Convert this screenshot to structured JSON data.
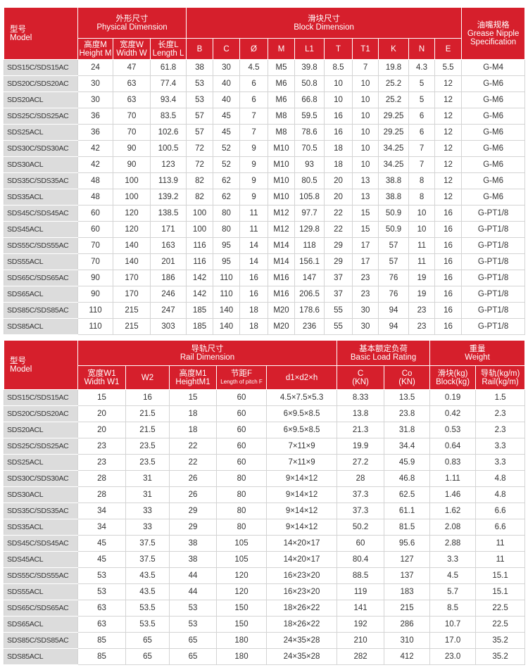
{
  "tables": [
    {
      "header": [
        [
          [
            "型号",
            "Model"
          ],
          [
            "外形尺寸",
            "Physical Dimension"
          ],
          [
            "滑块尺寸",
            "Block Dimension"
          ],
          [
            "油嘴规格",
            "Grease Nipple",
            "Specification"
          ]
        ],
        [
          [
            "高度M",
            "Height M"
          ],
          [
            "宽度W",
            "Width W"
          ],
          [
            "长度L",
            "Length L"
          ],
          [
            "B"
          ],
          [
            "C"
          ],
          [
            "Ø"
          ],
          [
            "M"
          ],
          [
            "L1"
          ],
          [
            "T"
          ],
          [
            "T1"
          ],
          [
            "K"
          ],
          [
            "N"
          ],
          [
            "E"
          ]
        ]
      ],
      "rows": [
        [
          "SDS15C/SDS15AC",
          "24",
          "47",
          "61.8",
          "38",
          "30",
          "4.5",
          "M5",
          "39.8",
          "8.5",
          "7",
          "19.8",
          "4.3",
          "5.5",
          "G-M4"
        ],
        [
          "SDS20C/SDS20AC",
          "30",
          "63",
          "77.4",
          "53",
          "40",
          "6",
          "M6",
          "50.8",
          "10",
          "10",
          "25.2",
          "5",
          "12",
          "G-M6"
        ],
        [
          "SDS20ACL",
          "30",
          "63",
          "93.4",
          "53",
          "40",
          "6",
          "M6",
          "66.8",
          "10",
          "10",
          "25.2",
          "5",
          "12",
          "G-M6"
        ],
        [
          "SDS25C/SDS25AC",
          "36",
          "70",
          "83.5",
          "57",
          "45",
          "7",
          "M8",
          "59.5",
          "16",
          "10",
          "29.25",
          "6",
          "12",
          "G-M6"
        ],
        [
          "SDS25ACL",
          "36",
          "70",
          "102.6",
          "57",
          "45",
          "7",
          "M8",
          "78.6",
          "16",
          "10",
          "29.25",
          "6",
          "12",
          "G-M6"
        ],
        [
          "SDS30C/SDS30AC",
          "42",
          "90",
          "100.5",
          "72",
          "52",
          "9",
          "M10",
          "70.5",
          "18",
          "10",
          "34.25",
          "7",
          "12",
          "G-M6"
        ],
        [
          "SDS30ACL",
          "42",
          "90",
          "123",
          "72",
          "52",
          "9",
          "M10",
          "93",
          "18",
          "10",
          "34.25",
          "7",
          "12",
          "G-M6"
        ],
        [
          "SDS35C/SDS35AC",
          "48",
          "100",
          "113.9",
          "82",
          "62",
          "9",
          "M10",
          "80.5",
          "20",
          "13",
          "38.8",
          "8",
          "12",
          "G-M6"
        ],
        [
          "SDS35ACL",
          "48",
          "100",
          "139.2",
          "82",
          "62",
          "9",
          "M10",
          "105.8",
          "20",
          "13",
          "38.8",
          "8",
          "12",
          "G-M6"
        ],
        [
          "SDS45C/SDS45AC",
          "60",
          "120",
          "138.5",
          "100",
          "80",
          "11",
          "M12",
          "97.7",
          "22",
          "15",
          "50.9",
          "10",
          "16",
          "G-PT1/8"
        ],
        [
          "SDS45ACL",
          "60",
          "120",
          "171",
          "100",
          "80",
          "11",
          "M12",
          "129.8",
          "22",
          "15",
          "50.9",
          "10",
          "16",
          "G-PT1/8"
        ],
        [
          "SDS55C/SDS55AC",
          "70",
          "140",
          "163",
          "116",
          "95",
          "14",
          "M14",
          "118",
          "29",
          "17",
          "57",
          "11",
          "16",
          "G-PT1/8"
        ],
        [
          "SDS55ACL",
          "70",
          "140",
          "201",
          "116",
          "95",
          "14",
          "M14",
          "156.1",
          "29",
          "17",
          "57",
          "11",
          "16",
          "G-PT1/8"
        ],
        [
          "SDS65C/SDS65AC",
          "90",
          "170",
          "186",
          "142",
          "110",
          "16",
          "M16",
          "147",
          "37",
          "23",
          "76",
          "19",
          "16",
          "G-PT1/8"
        ],
        [
          "SDS65ACL",
          "90",
          "170",
          "246",
          "142",
          "110",
          "16",
          "M16",
          "206.5",
          "37",
          "23",
          "76",
          "19",
          "16",
          "G-PT1/8"
        ],
        [
          "SDS85C/SDS85AC",
          "110",
          "215",
          "247",
          "185",
          "140",
          "18",
          "M20",
          "178.6",
          "55",
          "30",
          "94",
          "23",
          "16",
          "G-PT1/8"
        ],
        [
          "SDS85ACL",
          "110",
          "215",
          "303",
          "185",
          "140",
          "18",
          "M20",
          "236",
          "55",
          "30",
          "94",
          "23",
          "16",
          "G-PT1/8"
        ]
      ]
    },
    {
      "header": [
        [
          [
            "型号",
            "Model"
          ],
          [
            "导轨尺寸",
            "Rail Dimension"
          ],
          [
            "基本额定负荷",
            "Basic Load Rating"
          ],
          [
            "重量",
            "Weight"
          ]
        ],
        [
          [
            "宽度W1",
            "Width W1"
          ],
          [
            "W2"
          ],
          [
            "高度M1",
            "HeightM1"
          ],
          [
            "节距F",
            "Length of pitch F"
          ],
          [
            "d1×d2×h"
          ],
          [
            "C",
            "(KN)"
          ],
          [
            "Co",
            "(KN)"
          ],
          [
            "滑块(kg)",
            "Block(kg)"
          ],
          [
            "导轨(kg/m)",
            "Rail(kg/m)"
          ]
        ]
      ],
      "rows": [
        [
          "SDS15C/SDS15AC",
          "15",
          "16",
          "15",
          "60",
          "4.5×7.5×5.3",
          "8.33",
          "13.5",
          "0.19",
          "1.5"
        ],
        [
          "SDS20C/SDS20AC",
          "20",
          "21.5",
          "18",
          "60",
          "6×9.5×8.5",
          "13.8",
          "23.8",
          "0.42",
          "2.3"
        ],
        [
          "SDS20ACL",
          "20",
          "21.5",
          "18",
          "60",
          "6×9.5×8.5",
          "21.3",
          "31.8",
          "0.53",
          "2.3"
        ],
        [
          "SDS25C/SDS25AC",
          "23",
          "23.5",
          "22",
          "60",
          "7×11×9",
          "19.9",
          "34.4",
          "0.64",
          "3.3"
        ],
        [
          "SDS25ACL",
          "23",
          "23.5",
          "22",
          "60",
          "7×11×9",
          "27.2",
          "45.9",
          "0.83",
          "3.3"
        ],
        [
          "SDS30C/SDS30AC",
          "28",
          "31",
          "26",
          "80",
          "9×14×12",
          "28",
          "46.8",
          "1.11",
          "4.8"
        ],
        [
          "SDS30ACL",
          "28",
          "31",
          "26",
          "80",
          "9×14×12",
          "37.3",
          "62.5",
          "1.46",
          "4.8"
        ],
        [
          "SDS35C/SDS35AC",
          "34",
          "33",
          "29",
          "80",
          "9×14×12",
          "37.3",
          "61.1",
          "1.62",
          "6.6"
        ],
        [
          "SDS35ACL",
          "34",
          "33",
          "29",
          "80",
          "9×14×12",
          "50.2",
          "81.5",
          "2.08",
          "6.6"
        ],
        [
          "SDS45C/SDS45AC",
          "45",
          "37.5",
          "38",
          "105",
          "14×20×17",
          "60",
          "95.6",
          "2.88",
          "11"
        ],
        [
          "SDS45ACL",
          "45",
          "37.5",
          "38",
          "105",
          "14×20×17",
          "80.4",
          "127",
          "3.3",
          "11"
        ],
        [
          "SDS55C/SDS55AC",
          "53",
          "43.5",
          "44",
          "120",
          "16×23×20",
          "88.5",
          "137",
          "4.5",
          "15.1"
        ],
        [
          "SDS55ACL",
          "53",
          "43.5",
          "44",
          "120",
          "16×23×20",
          "119",
          "183",
          "5.7",
          "15.1"
        ],
        [
          "SDS65C/SDS65AC",
          "63",
          "53.5",
          "53",
          "150",
          "18×26×22",
          "141",
          "215",
          "8.5",
          "22.5"
        ],
        [
          "SDS65ACL",
          "63",
          "53.5",
          "53",
          "150",
          "18×26×22",
          "192",
          "286",
          "10.7",
          "22.5"
        ],
        [
          "SDS85C/SDS85AC",
          "85",
          "65",
          "65",
          "180",
          "24×35×28",
          "210",
          "310",
          "17.0",
          "35.2"
        ],
        [
          "SDS85ACL",
          "85",
          "65",
          "65",
          "180",
          "24×35×28",
          "282",
          "412",
          "23.0",
          "35.2"
        ]
      ]
    }
  ]
}
